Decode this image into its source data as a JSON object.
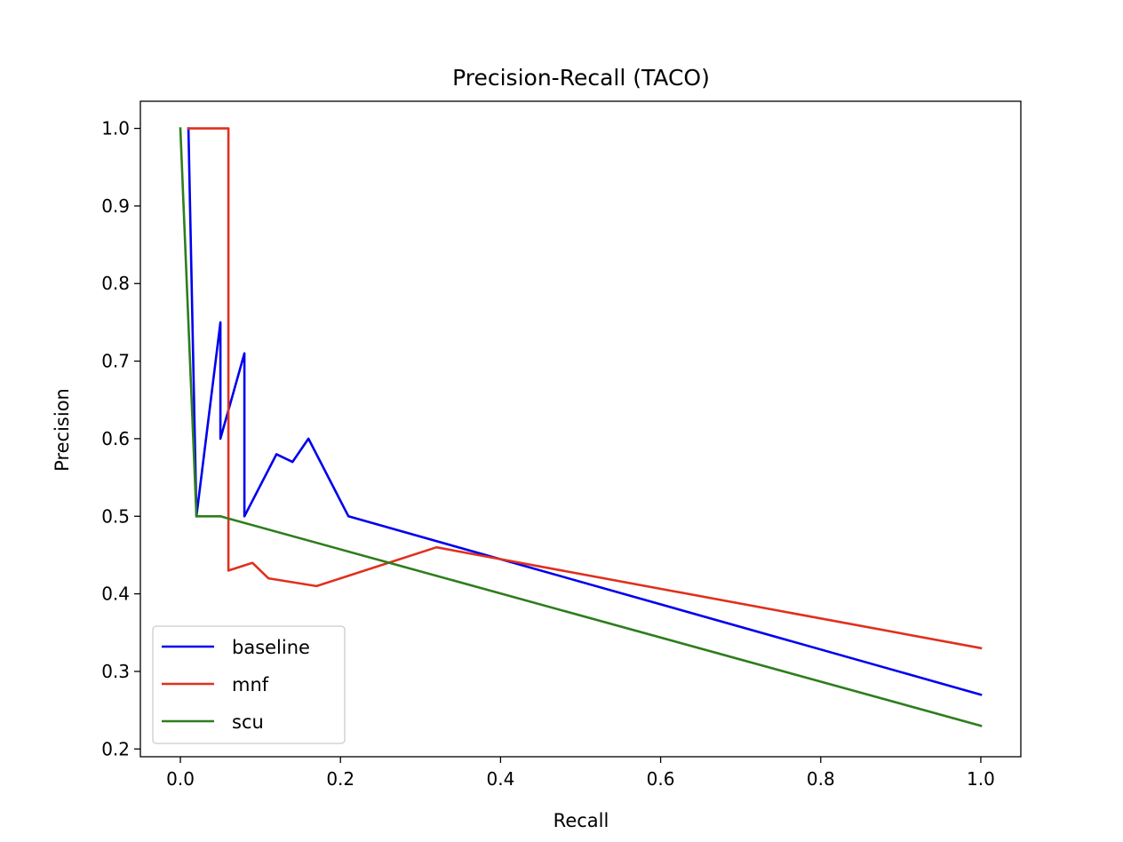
{
  "chart_data": {
    "type": "line",
    "title": "Precision-Recall (TACO)",
    "xlabel": "Recall",
    "ylabel": "Precision",
    "xlim": [
      -0.05,
      1.05
    ],
    "ylim": [
      0.19,
      1.035
    ],
    "xticks": [
      0.0,
      0.2,
      0.4,
      0.6,
      0.8,
      1.0
    ],
    "xtick_labels": [
      "0.0",
      "0.2",
      "0.4",
      "0.6",
      "0.8",
      "1.0"
    ],
    "yticks": [
      0.2,
      0.3,
      0.4,
      0.5,
      0.6,
      0.7,
      0.8,
      0.9,
      1.0
    ],
    "ytick_labels": [
      "0.2",
      "0.3",
      "0.4",
      "0.5",
      "0.6",
      "0.7",
      "0.8",
      "0.9",
      "1.0"
    ],
    "grid": false,
    "legend_position": "lower-left",
    "series": [
      {
        "name": "baseline",
        "color": "#0000ee",
        "x": [
          0.01,
          0.02,
          0.05,
          0.05,
          0.08,
          0.08,
          0.12,
          0.14,
          0.16,
          0.21,
          1.0
        ],
        "y": [
          1.0,
          0.5,
          0.75,
          0.6,
          0.71,
          0.5,
          0.58,
          0.57,
          0.6,
          0.5,
          0.27
        ]
      },
      {
        "name": "mnf",
        "color": "#e0301e",
        "x": [
          0.01,
          0.06,
          0.06,
          0.09,
          0.11,
          0.17,
          0.32,
          1.0
        ],
        "y": [
          1.0,
          1.0,
          0.43,
          0.44,
          0.42,
          0.41,
          0.46,
          0.33
        ]
      },
      {
        "name": "scu",
        "color": "#2e7d1e",
        "x": [
          0.0,
          0.02,
          0.05,
          1.0
        ],
        "y": [
          1.0,
          0.5,
          0.5,
          0.23
        ]
      }
    ]
  }
}
